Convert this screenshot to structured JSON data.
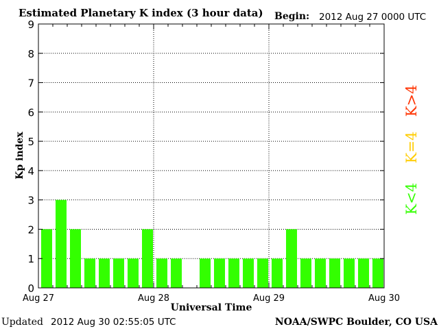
{
  "header": {
    "title": "Estimated Planetary K index (3 hour data)",
    "begin_label": "Begin:",
    "begin_value": "2012 Aug 27 0000 UTC"
  },
  "footer": {
    "updated_label": "Updated",
    "updated_value": "2012 Aug 30 02:55:05 UTC",
    "source": "NOAA/SWPC Boulder, CO USA"
  },
  "legend": {
    "low": "K<4",
    "mid": "K=4",
    "high": "K>4"
  },
  "colors": {
    "low": "#33ff00",
    "mid": "#ffcc00",
    "high": "#ff3300"
  },
  "chart_data": {
    "type": "bar",
    "title": "Estimated Planetary K index (3 hour data)",
    "xlabel": "Universal Time",
    "ylabel": "Kp index",
    "ylim": [
      0,
      9
    ],
    "yticks": [
      "0",
      "1",
      "2",
      "3",
      "4",
      "5",
      "6",
      "7",
      "8",
      "9"
    ],
    "xticks": [
      "Aug 27",
      "Aug 28",
      "Aug 29",
      "Aug 30"
    ],
    "grid": true,
    "bins_per_day": 8,
    "values": [
      2,
      3,
      2,
      1,
      1,
      1,
      1,
      2,
      1,
      1,
      0,
      1,
      1,
      1,
      1,
      1,
      1,
      2,
      1,
      1,
      1,
      1,
      1,
      1
    ]
  }
}
